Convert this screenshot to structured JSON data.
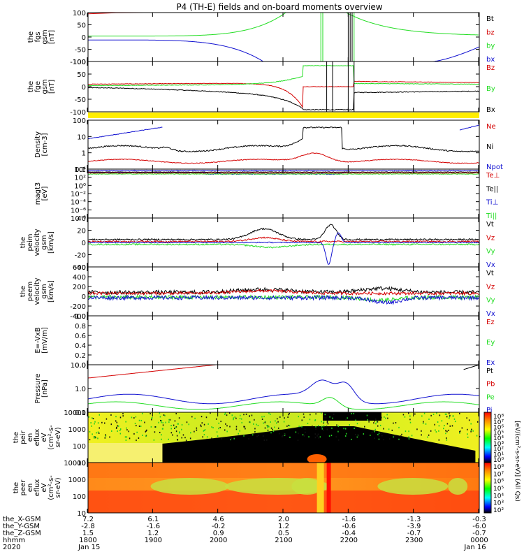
{
  "title": "P4 (TH-E) fields and on-board moments overview",
  "colors": {
    "black": "#000000",
    "red": "#d40000",
    "green": "#22dd22",
    "blue": "#1010d0",
    "yellow": "#ffee00"
  },
  "chart_data": {
    "type": "line",
    "time_axis": {
      "start": "1800",
      "end": "0000",
      "start_date": "Jan 15",
      "end_date": "Jan 16",
      "year": "2020",
      "ticks": [
        "1800",
        "1900",
        "2000",
        "2100",
        "2200",
        "2300",
        "0000"
      ]
    },
    "panels": [
      {
        "id": "fgs",
        "ylabel": [
          "the",
          "fgs",
          "gsm",
          "[nT]"
        ],
        "yticks": [
          "100",
          "50",
          "0",
          "-50",
          "-100"
        ],
        "ylim": [
          -100,
          100
        ],
        "legend": [
          {
            "label": "Bt",
            "color": "black"
          },
          {
            "label": "bz",
            "color": "red"
          },
          {
            "label": "by",
            "color": "green"
          },
          {
            "label": "bx",
            "color": "blue"
          }
        ]
      },
      {
        "id": "fge",
        "ylabel": [
          "the",
          "fge",
          "gsm",
          "[nT]"
        ],
        "yticks": [
          "100",
          "50",
          "0",
          "-50",
          "-100"
        ],
        "ylim": [
          -120,
          120
        ],
        "legend": [
          {
            "label": "Bz",
            "color": "red"
          },
          {
            "label": "By",
            "color": "green"
          },
          {
            "label": "Bx",
            "color": "black"
          }
        ]
      },
      {
        "id": "density",
        "ylabel": [
          "Density",
          "[cm-3]"
        ],
        "yticks": [
          "100",
          "10",
          "1",
          "0.1"
        ],
        "ylim": [
          0.05,
          300
        ],
        "scale": "log",
        "legend": [
          {
            "label": "Ne",
            "color": "red"
          },
          {
            "label": "Ni",
            "color": "black"
          },
          {
            "label": "Npot",
            "color": "blue"
          }
        ]
      },
      {
        "id": "temperature",
        "ylabel": [
          "magt3",
          "[eV]"
        ],
        "yticks": [
          "10⁴",
          "10²",
          "10⁰",
          "10⁻²",
          "10⁻⁴",
          "10⁻⁶",
          "10⁻⁸"
        ],
        "ylim": [
          1e-09,
          10000.0
        ],
        "scale": "log",
        "legend": [
          {
            "label": "Te⊥",
            "color": "red"
          },
          {
            "label": "Te||",
            "color": "black"
          },
          {
            "label": "Ti⊥",
            "color": "blue"
          },
          {
            "label": "Ti||",
            "color": "green"
          }
        ]
      },
      {
        "id": "peim_velocity",
        "ylabel": [
          "the",
          "peim",
          "velocity",
          "gsm",
          "[km/s]"
        ],
        "yticks": [
          "40",
          "20",
          "0",
          "-20",
          "-40"
        ],
        "ylim": [
          -40,
          40
        ],
        "legend": [
          {
            "label": "Vt",
            "color": "black"
          },
          {
            "label": "Vz",
            "color": "red"
          },
          {
            "label": "Vy",
            "color": "green"
          },
          {
            "label": "Vx",
            "color": "blue"
          }
        ]
      },
      {
        "id": "peem_velocity",
        "ylabel": [
          "the",
          "peem",
          "velocity",
          "gsm",
          "[km/s]"
        ],
        "yticks": [
          "600",
          "400",
          "200",
          "0",
          "-200",
          "-400"
        ],
        "ylim": [
          -400,
          600
        ],
        "legend": [
          {
            "label": "Vt",
            "color": "black"
          },
          {
            "label": "Vz",
            "color": "red"
          },
          {
            "label": "Vy",
            "color": "green"
          },
          {
            "label": "Vx",
            "color": "blue"
          }
        ]
      },
      {
        "id": "efield",
        "ylabel": [
          "E=-VxB",
          "[mV/m]"
        ],
        "yticks": [
          "1.0",
          "0.8",
          "0.6",
          "0.4",
          "0.2",
          "0.0"
        ],
        "ylim": [
          0,
          1
        ],
        "legend": [
          {
            "label": "Ez",
            "color": "red"
          },
          {
            "label": "Ey",
            "color": "green"
          },
          {
            "label": "Ex",
            "color": "blue"
          }
        ]
      },
      {
        "id": "pressure",
        "ylabel": [
          "Pressure",
          "[nPa]"
        ],
        "yticks": [
          "10.0",
          "1.0",
          "0.1"
        ],
        "ylim": [
          0.03,
          30
        ],
        "scale": "log",
        "legend": [
          {
            "label": "Pt",
            "color": "black"
          },
          {
            "label": "Pb",
            "color": "red"
          },
          {
            "label": "Pe",
            "color": "green"
          },
          {
            "label": "Pi",
            "color": "blue"
          }
        ]
      },
      {
        "id": "peir_spec",
        "type": "heatmap",
        "ylabel": [
          "the",
          "peir",
          "en",
          "eflux",
          "eV",
          "(cm²-s-",
          "sr-eV)"
        ],
        "yticks": [
          "10000",
          "1000",
          "100",
          "10"
        ]
      },
      {
        "id": "peer_spec",
        "type": "heatmap",
        "ylabel": [
          "the",
          "peer",
          "en",
          "eflux",
          "eV",
          "(cm²-s-",
          "sr-eV)"
        ],
        "yticks": [
          "10000",
          "1000",
          "100",
          "10"
        ]
      }
    ],
    "colorbars": [
      {
        "label": "[eV/(cm²-s-sr-eV)]",
        "ticks": [
          "10⁸",
          "10⁷",
          "10⁶",
          "10⁵",
          "10⁴",
          "10³",
          "10²",
          "10¹",
          "10⁰"
        ]
      },
      {
        "label": "[eV/(cm²-s-sr-eV)]",
        "ticks": [
          "10⁸",
          "10⁷",
          "10⁶",
          "10⁵",
          "10⁴",
          "10³",
          "10²"
        ]
      }
    ],
    "colorbar_side_label": "[eV/(cm²-s-sr-eV)] (All Qs)",
    "ephemeris": [
      {
        "label": "the_X-GSM",
        "values": [
          "7.2",
          "6.1",
          "4.6",
          "2.0",
          "-1.6",
          "-1.3",
          "-0.3"
        ]
      },
      {
        "label": "the_Y-GSM",
        "values": [
          "-2.8",
          "-1.6",
          "-0.2",
          "1.2",
          "-0.6",
          "-3.9",
          "-6.0"
        ]
      },
      {
        "label": "the_Z-GSM",
        "values": [
          "1.5",
          "1.2",
          "0.9",
          "0.5",
          "-0.4",
          "-0.7",
          "-0.7"
        ]
      },
      {
        "label": "hhmm",
        "values": [
          "1800",
          "1900",
          "2000",
          "2100",
          "2200",
          "2300",
          "0000"
        ]
      }
    ],
    "footer": {
      "year": "2020",
      "start_date": "Jan 15",
      "end_date": "Jan 16"
    }
  }
}
